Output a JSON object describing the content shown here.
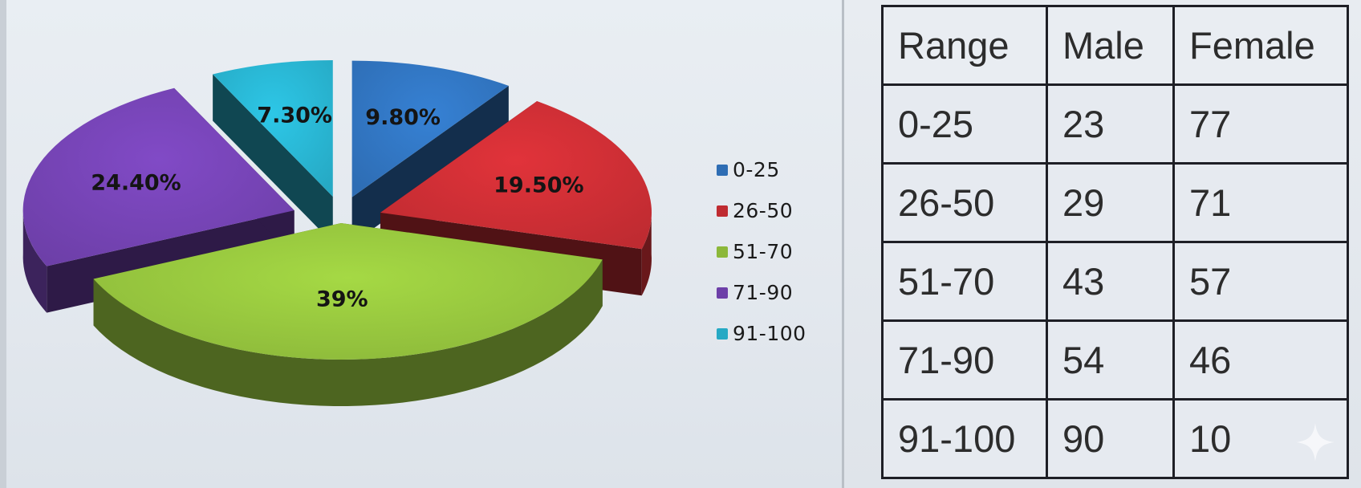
{
  "chart_data": {
    "type": "pie",
    "title": "",
    "slices": [
      {
        "category": "0-25",
        "value": 9.8,
        "label": "9.80%",
        "color": "#2e6db4"
      },
      {
        "category": "26-50",
        "value": 19.5,
        "label": "19.50%",
        "color": "#bf2b31"
      },
      {
        "category": "51-70",
        "value": 39,
        "label": "39%",
        "color": "#8cb83a"
      },
      {
        "category": "71-90",
        "value": 24.4,
        "label": "24.40%",
        "color": "#6d3fa8"
      },
      {
        "category": "91-100",
        "value": 7.3,
        "label": "7.30%",
        "color": "#26a9c4"
      }
    ],
    "legend_position": "right",
    "legend": [
      "0-25",
      "26-50",
      "51-70",
      "71-90",
      "91-100"
    ]
  },
  "table": {
    "headers": [
      "Range",
      "Male",
      "Female"
    ],
    "rows": [
      [
        "0-25",
        "23",
        "77"
      ],
      [
        "26-50",
        "29",
        "71"
      ],
      [
        "51-70",
        "43",
        "57"
      ],
      [
        "71-90",
        "54",
        "46"
      ],
      [
        "91-100",
        "90",
        "10"
      ]
    ]
  },
  "icons": {
    "corner": "sparkle-icon"
  }
}
